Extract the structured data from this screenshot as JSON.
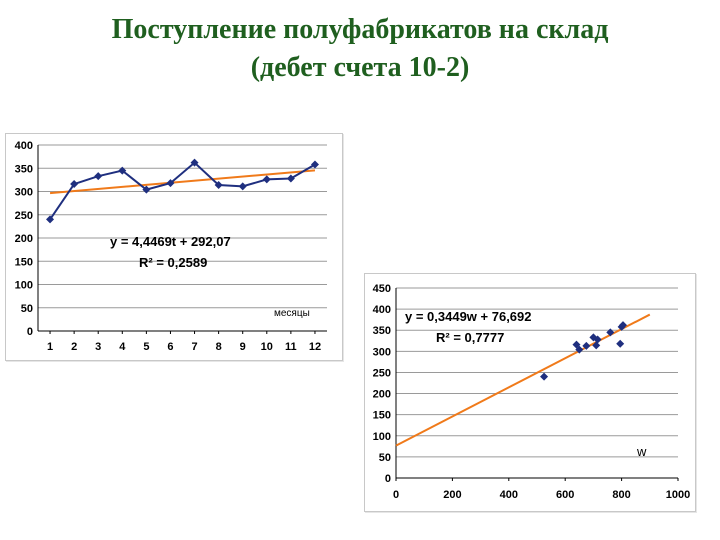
{
  "slide": {
    "title_line1": "Поступление полуфабрикатов на склад",
    "title_line2": "(дебет счета 10-2)"
  },
  "chart_data": [
    {
      "type": "line",
      "x": [
        1,
        2,
        3,
        4,
        5,
        6,
        7,
        8,
        9,
        10,
        11,
        12
      ],
      "series": [
        {
          "values": [
            240,
            316,
            333,
            345,
            304,
            318,
            362,
            314,
            311,
            326,
            328,
            358
          ],
          "color": "#1f2f7f"
        }
      ],
      "trendline": {
        "slope": 4.4469,
        "intercept": 292.07,
        "color": "#f07a1a"
      },
      "equation": "y = 4,4469t + 292,07",
      "r2": "R² = 0,2589",
      "annotation": "месяцы",
      "xlim": [
        1,
        12
      ],
      "ylim": [
        0,
        400
      ],
      "xticks": [
        "1",
        "2",
        "3",
        "4",
        "5",
        "6",
        "7",
        "8",
        "9",
        "10",
        "11",
        "12"
      ],
      "yticks": [
        "0",
        "50",
        "100",
        "150",
        "200",
        "250",
        "300",
        "350",
        "400"
      ],
      "grid": "horizontal"
    },
    {
      "type": "scatter",
      "points": [
        {
          "x": 525,
          "y": 240
        },
        {
          "x": 640,
          "y": 316
        },
        {
          "x": 650,
          "y": 304
        },
        {
          "x": 675,
          "y": 313
        },
        {
          "x": 700,
          "y": 333
        },
        {
          "x": 710,
          "y": 314
        },
        {
          "x": 715,
          "y": 328
        },
        {
          "x": 760,
          "y": 345
        },
        {
          "x": 795,
          "y": 318
        },
        {
          "x": 800,
          "y": 358
        },
        {
          "x": 805,
          "y": 362
        }
      ],
      "color": "#1f2f7f",
      "trendline": {
        "slope": 0.3449,
        "intercept": 76.692,
        "x_range": [
          0,
          900
        ],
        "color": "#f07a1a"
      },
      "equation": "y = 0,3449w + 76,692",
      "r2": "R² = 0,7777",
      "annotation": "w",
      "xlim": [
        0,
        1000
      ],
      "ylim": [
        0,
        450
      ],
      "xticks": [
        "0",
        "200",
        "400",
        "600",
        "800",
        "1000"
      ],
      "yticks": [
        "0",
        "50",
        "100",
        "150",
        "200",
        "250",
        "300",
        "350",
        "400",
        "450"
      ],
      "grid": "horizontal"
    }
  ]
}
